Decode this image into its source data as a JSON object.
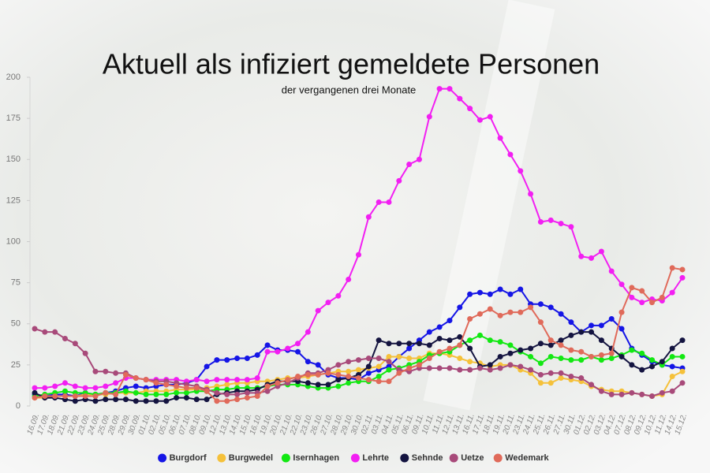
{
  "chart_data": {
    "type": "line",
    "title": "Aktuell als infiziert gemeldete Personen",
    "subtitle": "der vergangenen drei Monate",
    "categories": [
      "16.09.",
      "17.09.",
      "18.09.",
      "21.09.",
      "22.09.",
      "23.09.",
      "24.09.",
      "25.09.",
      "28.09.",
      "29.09.",
      "30.09.",
      "01.10.",
      "02.10.",
      "05.10.",
      "06.10.",
      "07.10.",
      "08.10.",
      "09.10.",
      "12.10.",
      "13.10.",
      "14.10.",
      "15.10.",
      "16.10.",
      "19.10.",
      "20.10.",
      "21.10.",
      "22.10.",
      "23.10.",
      "26.10.",
      "27.10.",
      "28.10.",
      "29.10.",
      "30.10.",
      "02.11.",
      "03.11.",
      "04.11.",
      "05.11.",
      "06.11.",
      "09.11.",
      "10.11.",
      "11.11.",
      "12.11.",
      "13.11.",
      "16.11.",
      "17.11.",
      "18.11.",
      "19.11.",
      "20.11.",
      "23.11.",
      "24.11.",
      "25.11.",
      "26.11.",
      "27.11.",
      "30.11.",
      "01.12.",
      "02.12.",
      "03.12.",
      "04.12.",
      "07.12.",
      "08.12.",
      "09.12.",
      "10.12.",
      "11.12.",
      "14.12.",
      "15.12."
    ],
    "series": [
      {
        "name": "Burgdorf",
        "color": "#1515e6",
        "values": [
          7,
          6,
          7,
          7,
          6,
          8,
          7,
          8,
          9,
          11,
          12,
          11,
          12,
          13,
          13,
          14,
          16,
          24,
          28,
          28,
          29,
          29,
          31,
          37,
          34,
          34,
          33,
          27,
          25,
          19,
          17,
          17,
          16,
          20,
          22,
          24,
          30,
          35,
          40,
          45,
          48,
          52,
          60,
          68,
          69,
          68,
          71,
          68,
          71,
          62,
          62,
          60,
          56,
          51,
          45,
          49,
          49,
          53,
          47,
          35,
          31,
          27,
          25,
          24,
          23
        ]
      },
      {
        "name": "Burgwedel",
        "color": "#f5c13a",
        "values": [
          5,
          5,
          6,
          6,
          6,
          7,
          7,
          7,
          8,
          8,
          8,
          9,
          9,
          9,
          10,
          10,
          10,
          11,
          12,
          13,
          14,
          14,
          15,
          15,
          16,
          17,
          17,
          18,
          19,
          20,
          21,
          21,
          22,
          23,
          24,
          30,
          30,
          29,
          29,
          32,
          32,
          31,
          29,
          27,
          26,
          24,
          25,
          25,
          22,
          20,
          14,
          14,
          17,
          16,
          15,
          12,
          10,
          9,
          9,
          8,
          7,
          6,
          7,
          18,
          21
        ]
      },
      {
        "name": "Isernhagen",
        "color": "#12e812",
        "values": [
          6,
          7,
          8,
          9,
          8,
          8,
          7,
          8,
          8,
          9,
          8,
          7,
          7,
          7,
          8,
          8,
          9,
          9,
          10,
          10,
          11,
          11,
          11,
          12,
          13,
          13,
          13,
          12,
          11,
          11,
          12,
          14,
          15,
          15,
          18,
          22,
          23,
          25,
          27,
          31,
          32,
          33,
          37,
          40,
          43,
          40,
          39,
          37,
          33,
          30,
          26,
          30,
          29,
          28,
          28,
          30,
          28,
          29,
          31,
          34,
          32,
          28,
          25,
          30,
          30
        ]
      },
      {
        "name": "Lehrte",
        "color": "#f21ff2",
        "values": [
          11,
          11,
          12,
          14,
          12,
          11,
          11,
          12,
          14,
          17,
          17,
          16,
          16,
          16,
          16,
          15,
          16,
          15,
          16,
          16,
          16,
          16,
          17,
          33,
          33,
          35,
          38,
          45,
          58,
          63,
          67,
          77,
          92,
          115,
          124,
          124,
          137,
          147,
          150,
          176,
          193,
          193,
          187,
          181,
          174,
          176,
          163,
          153,
          143,
          129,
          112,
          113,
          111,
          109,
          91,
          90,
          94,
          82,
          74,
          66,
          63,
          65,
          64,
          69,
          78
        ]
      },
      {
        "name": "Sehnde",
        "color": "#141440",
        "values": [
          8,
          5,
          5,
          4,
          3,
          4,
          3,
          4,
          4,
          4,
          3,
          3,
          3,
          3,
          5,
          5,
          4,
          4,
          7,
          8,
          9,
          9,
          10,
          13,
          15,
          15,
          15,
          14,
          13,
          13,
          16,
          17,
          19,
          24,
          40,
          38,
          38,
          38,
          38,
          37,
          41,
          40,
          42,
          35,
          24,
          25,
          30,
          32,
          34,
          35,
          38,
          37,
          40,
          43,
          45,
          45,
          40,
          35,
          30,
          25,
          22,
          24,
          27,
          35,
          40
        ]
      },
      {
        "name": "Uetze",
        "color": "#a84a7a",
        "values": [
          47,
          45,
          45,
          41,
          38,
          32,
          21,
          21,
          20,
          20,
          17,
          16,
          15,
          15,
          14,
          13,
          12,
          10,
          8,
          7,
          7,
          8,
          8,
          9,
          12,
          14,
          17,
          20,
          20,
          22,
          25,
          27,
          28,
          29,
          29,
          27,
          22,
          21,
          23,
          23,
          23,
          23,
          22,
          22,
          23,
          22,
          23,
          25,
          24,
          22,
          19,
          20,
          20,
          18,
          17,
          13,
          9,
          7,
          7,
          8,
          7,
          6,
          8,
          9,
          14
        ]
      },
      {
        "name": "Wedemark",
        "color": "#e06a5a",
        "values": [
          5,
          6,
          6,
          6,
          6,
          6,
          6,
          8,
          7,
          19,
          17,
          16,
          14,
          13,
          12,
          11,
          11,
          9,
          3,
          3,
          4,
          5,
          6,
          12,
          14,
          16,
          18,
          19,
          19,
          20,
          19,
          18,
          17,
          16,
          15,
          15,
          20,
          23,
          25,
          29,
          33,
          35,
          37,
          53,
          56,
          59,
          55,
          57,
          57,
          60,
          51,
          40,
          37,
          34,
          33,
          30,
          31,
          32,
          57,
          72,
          70,
          63,
          66,
          84,
          83
        ]
      }
    ],
    "ylim": [
      0,
      200
    ],
    "yticks": [
      0,
      25,
      50,
      75,
      100,
      125,
      150,
      175,
      200
    ],
    "legend": "bottom"
  }
}
